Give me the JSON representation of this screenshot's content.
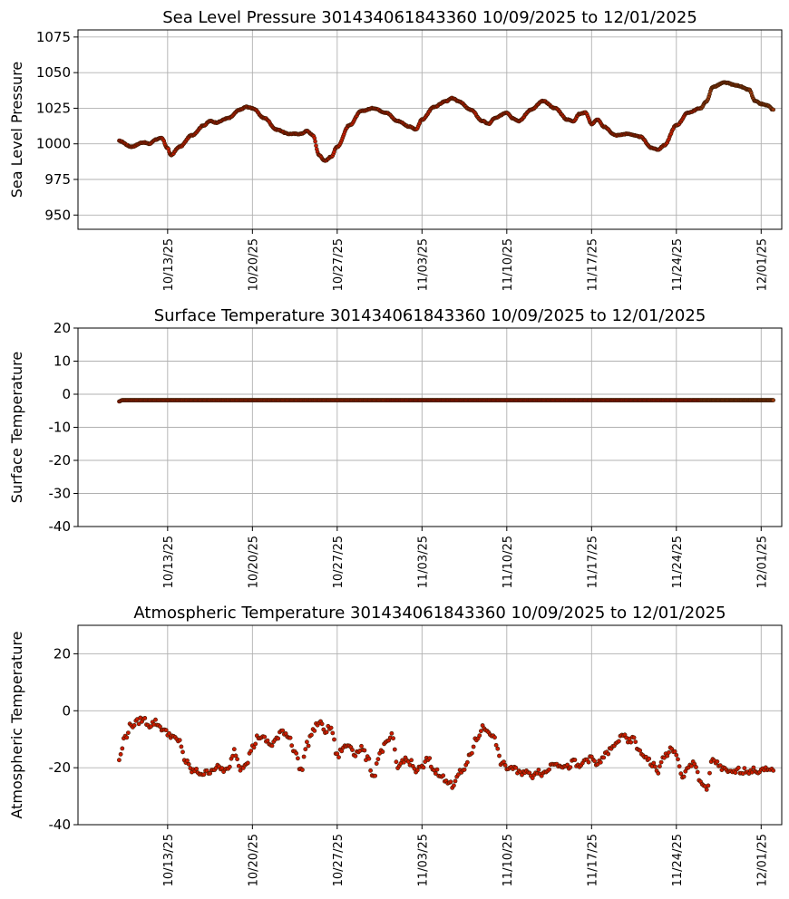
{
  "chart_data": [
    {
      "type": "scatter",
      "title": "Sea Level Pressure 301434061843360  10/09/2025 to 12/01/2025",
      "ylabel": "Sea Level Pressure",
      "xlabel": "",
      "x_range": [
        "10/09/2025",
        "12/01/2025"
      ],
      "xlim_days": [
        -3.4,
        54.7
      ],
      "ylim": [
        940,
        1080
      ],
      "yticks": [
        950,
        975,
        1000,
        1025,
        1050,
        1075
      ],
      "xticks": [
        "10/13/25",
        "10/20/25",
        "10/27/25",
        "11/03/25",
        "11/10/25",
        "11/17/25",
        "11/24/25",
        "12/01/25"
      ],
      "grid": true,
      "marker_color": "#cc1b00",
      "series": [
        {
          "keypoints": [
            [
              "10/09/2025",
              1002
            ],
            [
              "10/10/2025",
              998
            ],
            [
              "10/11/2025",
              1001
            ],
            [
              "10/11/2025 12:00",
              1000
            ],
            [
              "10/12/2025",
              1003
            ],
            [
              "10/12/2025 12:00",
              1004
            ],
            [
              "10/13/2025",
              997
            ],
            [
              "10/13/2025 06:00",
              992
            ],
            [
              "10/14/2025",
              998
            ],
            [
              "10/15/2025",
              1006
            ],
            [
              "10/16/2025",
              1013
            ],
            [
              "10/16/2025 12:00",
              1016
            ],
            [
              "10/17/2025",
              1015
            ],
            [
              "10/18/2025",
              1018
            ],
            [
              "10/19/2025",
              1024
            ],
            [
              "10/19/2025 12:00",
              1026
            ],
            [
              "10/20/2025",
              1025
            ],
            [
              "10/21/2025",
              1018
            ],
            [
              "10/22/2025",
              1010
            ],
            [
              "10/23/2025",
              1007
            ],
            [
              "10/24/2025",
              1007
            ],
            [
              "10/24/2025 12:00",
              1009
            ],
            [
              "10/25/2025",
              1006
            ],
            [
              "10/25/2025 12:00",
              992
            ],
            [
              "10/26/2025",
              988
            ],
            [
              "10/26/2025 12:00",
              991
            ],
            [
              "10/27/2025",
              998
            ],
            [
              "10/28/2025",
              1013
            ],
            [
              "10/29/2025",
              1023
            ],
            [
              "10/30/2025",
              1025
            ],
            [
              "10/31/2025",
              1022
            ],
            [
              "11/01/2025",
              1016
            ],
            [
              "11/02/2025",
              1012
            ],
            [
              "11/02/2025 12:00",
              1010
            ],
            [
              "11/03/2025",
              1017
            ],
            [
              "11/04/2025",
              1026
            ],
            [
              "11/05/2025",
              1030
            ],
            [
              "11/05/2025 12:00",
              1032
            ],
            [
              "11/06/2025",
              1030
            ],
            [
              "11/07/2025",
              1024
            ],
            [
              "11/08/2025",
              1016
            ],
            [
              "11/08/2025 12:00",
              1014
            ],
            [
              "11/09/2025",
              1018
            ],
            [
              "11/10/2025",
              1022
            ],
            [
              "11/10/2025 12:00",
              1018
            ],
            [
              "11/11/2025",
              1016
            ],
            [
              "11/12/2025",
              1024
            ],
            [
              "11/13/2025",
              1030
            ],
            [
              "11/14/2025",
              1025
            ],
            [
              "11/15/2025",
              1017
            ],
            [
              "11/15/2025 12:00",
              1016
            ],
            [
              "11/16/2025",
              1021
            ],
            [
              "11/16/2025 12:00",
              1022
            ],
            [
              "11/17/2025",
              1014
            ],
            [
              "11/17/2025 12:00",
              1017
            ],
            [
              "11/18/2025",
              1012
            ],
            [
              "11/19/2025",
              1006
            ],
            [
              "11/20/2025",
              1007
            ],
            [
              "11/21/2025",
              1005
            ],
            [
              "11/22/2025",
              997
            ],
            [
              "11/22/2025 12:00",
              996
            ],
            [
              "11/23/2025",
              999
            ],
            [
              "11/24/2025",
              1013
            ],
            [
              "11/25/2025",
              1022
            ],
            [
              "11/26/2025",
              1025
            ],
            [
              "11/26/2025 12:00",
              1030
            ],
            [
              "11/27/2025",
              1040
            ],
            [
              "11/28/2025",
              1043
            ],
            [
              "11/29/2025",
              1041
            ],
            [
              "11/30/2025",
              1038
            ],
            [
              "11/30/2025 12:00",
              1030
            ],
            [
              "12/01/2025",
              1028
            ],
            [
              "12/01/2025 12:00",
              1027
            ],
            [
              "12/02/2025",
              1024
            ]
          ]
        }
      ]
    },
    {
      "type": "scatter",
      "title": "Surface Temperature 301434061843360  10/09/2025 to 12/01/2025",
      "ylabel": "Surface Temperature",
      "xlabel": "",
      "x_range": [
        "10/09/2025",
        "12/01/2025"
      ],
      "xlim_days": [
        -3.4,
        54.7
      ],
      "ylim": [
        -40,
        20
      ],
      "yticks": [
        -40,
        -30,
        -20,
        -10,
        0,
        10,
        20
      ],
      "xticks": [
        "10/13/25",
        "10/20/25",
        "10/27/25",
        "11/03/25",
        "11/10/25",
        "11/17/25",
        "11/24/25",
        "12/01/25"
      ],
      "grid": true,
      "marker_color": "#cc1b00",
      "series": [
        {
          "keypoints": [
            [
              "10/09/2025",
              -2.2
            ],
            [
              "10/09/2025 06:00",
              -1.8
            ],
            [
              "10/15/2025",
              -1.8
            ],
            [
              "10/25/2025",
              -1.8
            ],
            [
              "11/05/2025",
              -1.8
            ],
            [
              "11/15/2025",
              -1.8
            ],
            [
              "11/25/2025",
              -1.8
            ],
            [
              "12/02/2025",
              -1.8
            ]
          ]
        }
      ]
    },
    {
      "type": "scatter",
      "title": "Atmospheric Temperature 301434061843360  10/09/2025 to 12/01/2025",
      "ylabel": "Atmospheric Temperature",
      "xlabel": "",
      "x_range": [
        "10/09/2025",
        "12/01/2025"
      ],
      "xlim_days": [
        -3.4,
        54.7
      ],
      "ylim": [
        -40,
        30
      ],
      "yticks": [
        -40,
        -20,
        0,
        20
      ],
      "xticks": [
        "10/13/25",
        "10/20/25",
        "10/27/25",
        "11/03/25",
        "11/10/25",
        "11/17/25",
        "11/24/25",
        "12/01/25"
      ],
      "grid": true,
      "marker_color": "#cc1b00",
      "series": [
        {
          "keypoints": [
            [
              "10/09/2025",
              -17
            ],
            [
              "10/09/2025 12:00",
              -9
            ],
            [
              "10/10/2025",
              -5
            ],
            [
              "10/11/2025",
              -3
            ],
            [
              "10/11/2025 12:00",
              -5
            ],
            [
              "10/12/2025",
              -4
            ],
            [
              "10/12/2025 12:00",
              -6
            ],
            [
              "10/13/2025",
              -8
            ],
            [
              "10/14/2025",
              -11
            ],
            [
              "10/14/2025 12:00",
              -18
            ],
            [
              "10/15/2025",
              -21
            ],
            [
              "10/16/2025",
              -22
            ],
            [
              "10/17/2025",
              -20
            ],
            [
              "10/18/2025",
              -21
            ],
            [
              "10/18/2025 12:00",
              -14
            ],
            [
              "10/19/2025",
              -20
            ],
            [
              "10/19/2025 12:00",
              -18
            ],
            [
              "10/20/2025",
              -13
            ],
            [
              "10/20/2025 12:00",
              -9
            ],
            [
              "10/21/2025",
              -10
            ],
            [
              "10/21/2025 12:00",
              -12
            ],
            [
              "10/22/2025",
              -10
            ],
            [
              "10/22/2025 12:00",
              -7
            ],
            [
              "10/23/2025",
              -9
            ],
            [
              "10/23/2025 12:00",
              -14
            ],
            [
              "10/24/2025",
              -21
            ],
            [
              "10/24/2025 12:00",
              -12
            ],
            [
              "10/25/2025",
              -7
            ],
            [
              "10/25/2025 12:00",
              -4
            ],
            [
              "10/26/2025",
              -7
            ],
            [
              "10/26/2025 12:00",
              -6
            ],
            [
              "10/27/2025",
              -16
            ],
            [
              "10/27/2025 12:00",
              -13
            ],
            [
              "10/28/2025",
              -12
            ],
            [
              "10/28/2025 12:00",
              -15
            ],
            [
              "10/29/2025",
              -13
            ],
            [
              "10/29/2025 12:00",
              -17
            ],
            [
              "10/30/2025",
              -23
            ],
            [
              "10/30/2025 12:00",
              -15
            ],
            [
              "10/31/2025",
              -12
            ],
            [
              "10/31/2025 12:00",
              -9
            ],
            [
              "11/01/2025",
              -20
            ],
            [
              "11/01/2025 12:00",
              -17
            ],
            [
              "11/02/2025",
              -18
            ],
            [
              "11/02/2025 12:00",
              -21
            ],
            [
              "11/03/2025",
              -20
            ],
            [
              "11/03/2025 12:00",
              -17
            ],
            [
              "11/04/2025",
              -21
            ],
            [
              "11/04/2025 12:00",
              -22
            ],
            [
              "11/05/2025",
              -25
            ],
            [
              "11/05/2025 12:00",
              -26
            ],
            [
              "11/06/2025",
              -22
            ],
            [
              "11/06/2025 12:00",
              -21
            ],
            [
              "11/07/2025",
              -15
            ],
            [
              "11/07/2025 12:00",
              -10
            ],
            [
              "11/08/2025",
              -6
            ],
            [
              "11/08/2025 12:00",
              -7
            ],
            [
              "11/09/2025",
              -10
            ],
            [
              "11/09/2025 12:00",
              -18
            ],
            [
              "11/10/2025",
              -20
            ],
            [
              "11/10/2025 12:00",
              -20
            ],
            [
              "11/11/2025",
              -22
            ],
            [
              "11/11/2025 12:00",
              -21
            ],
            [
              "11/12/2025",
              -23
            ],
            [
              "11/12/2025 12:00",
              -21
            ],
            [
              "11/13/2025",
              -22
            ],
            [
              "11/14/2025",
              -18
            ],
            [
              "11/14/2025 12:00",
              -19
            ],
            [
              "11/15/2025",
              -20
            ],
            [
              "11/15/2025 12:00",
              -18
            ],
            [
              "11/16/2025",
              -20
            ],
            [
              "11/16/2025 12:00",
              -17
            ],
            [
              "11/17/2025",
              -17
            ],
            [
              "11/17/2025 12:00",
              -19
            ],
            [
              "11/18/2025",
              -16
            ],
            [
              "11/18/2025 12:00",
              -14
            ],
            [
              "11/19/2025",
              -12
            ],
            [
              "11/19/2025 12:00",
              -8
            ],
            [
              "11/20/2025",
              -11
            ],
            [
              "11/20/2025 12:00",
              -10
            ],
            [
              "11/21/2025",
              -15
            ],
            [
              "11/21/2025 12:00",
              -16
            ],
            [
              "11/22/2025",
              -19
            ],
            [
              "11/22/2025 12:00",
              -21
            ],
            [
              "11/23/2025",
              -16
            ],
            [
              "11/23/2025 12:00",
              -14
            ],
            [
              "11/24/2025",
              -15
            ],
            [
              "11/24/2025 12:00",
              -24
            ],
            [
              "11/25/2025",
              -20
            ],
            [
              "11/25/2025 12:00",
              -18
            ],
            [
              "11/26/2025",
              -25
            ],
            [
              "11/26/2025 12:00",
              -28
            ],
            [
              "11/27/2025",
              -17
            ],
            [
              "11/27/2025 12:00",
              -19
            ],
            [
              "11/28/2025",
              -21
            ],
            [
              "11/28/2025 12:00",
              -22
            ],
            [
              "11/29/2025",
              -21
            ],
            [
              "12/02/2025",
              -21
            ]
          ]
        }
      ]
    }
  ]
}
